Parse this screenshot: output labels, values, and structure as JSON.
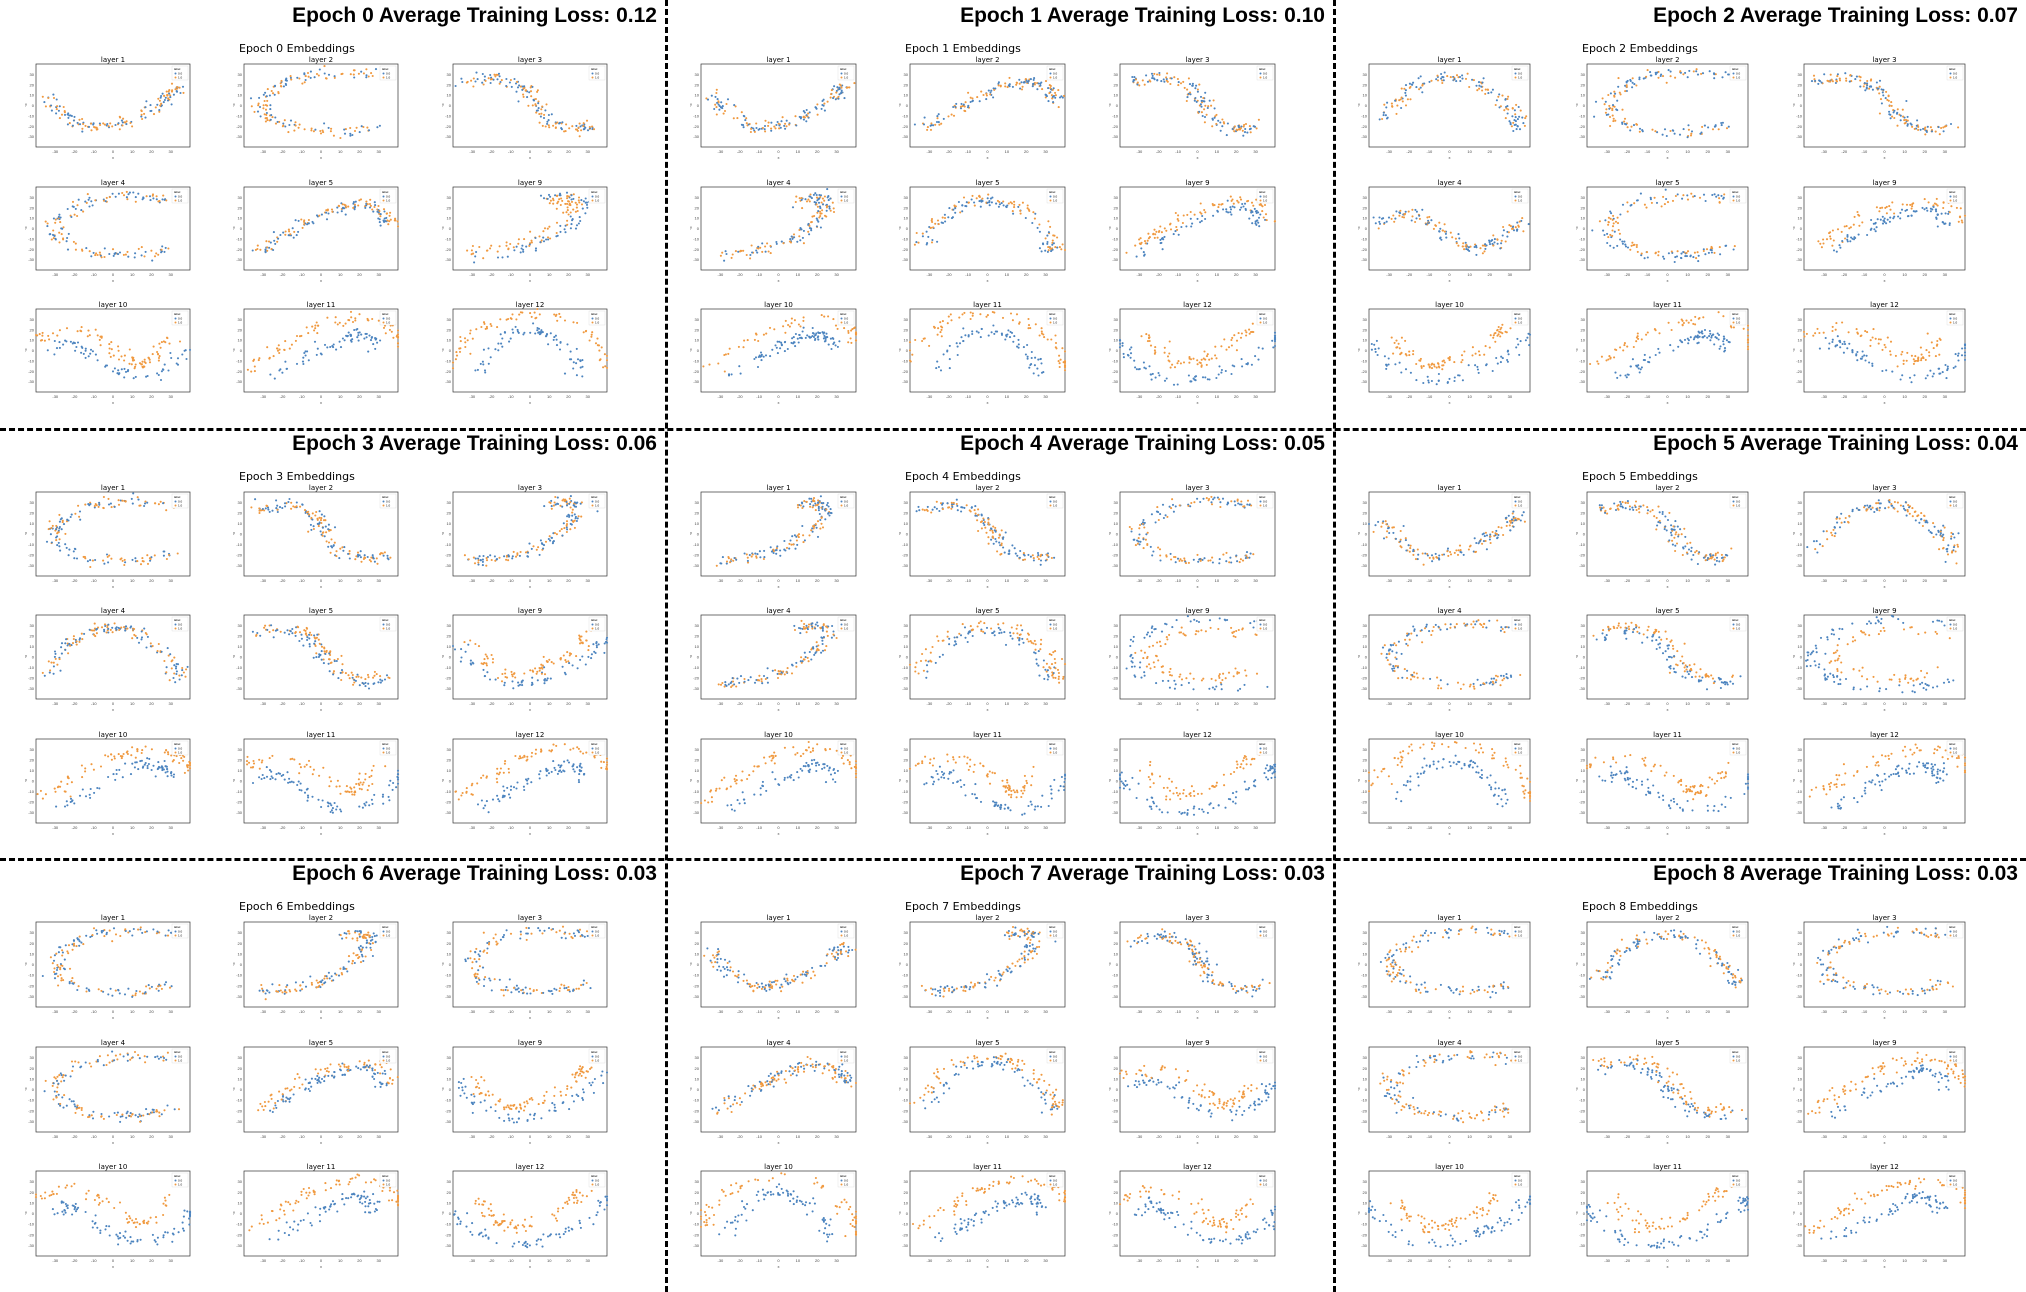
{
  "colors": {
    "class_0": "#4c84bf",
    "class_1": "#f0993f",
    "frame": "#333333",
    "divider": "#000000"
  },
  "legend": {
    "title": "label",
    "entries": [
      "0.0",
      "1.0"
    ]
  },
  "panels": [
    {
      "loss_title": "Epoch 0 Average Training Loss: 0.12",
      "embed_title": "Epoch 0 Embeddings"
    },
    {
      "loss_title": "Epoch 1 Average Training Loss: 0.10",
      "embed_title": "Epoch 1 Embeddings"
    },
    {
      "loss_title": "Epoch 2 Average Training Loss: 0.07",
      "embed_title": "Epoch 2 Embeddings"
    },
    {
      "loss_title": "Epoch 3 Average Training Loss: 0.06",
      "embed_title": "Epoch 3 Embeddings"
    },
    {
      "loss_title": "Epoch 4 Average Training Loss: 0.05",
      "embed_title": "Epoch 4 Embeddings"
    },
    {
      "loss_title": "Epoch 5 Average Training Loss: 0.04",
      "embed_title": "Epoch 5 Embeddings"
    },
    {
      "loss_title": "Epoch 6 Average Training Loss: 0.03",
      "embed_title": "Epoch 6 Embeddings"
    },
    {
      "loss_title": "Epoch 7 Average Training Loss: 0.03",
      "embed_title": "Epoch 7 Embeddings"
    },
    {
      "loss_title": "Epoch 8 Average Training Loss: 0.03",
      "embed_title": "Epoch 8 Embeddings"
    }
  ],
  "chart_data": {
    "type": "scatter",
    "description_of_series": "t-SNE embeddings per layer, colored by label",
    "series_names": [
      "0.0",
      "1.0"
    ],
    "layers": [
      "layer 1",
      "layer 2",
      "layer 3",
      "layer 4",
      "layer 5",
      "layer 9",
      "layer 10",
      "layer 11",
      "layer 12"
    ],
    "xlim": [
      -40,
      40
    ],
    "ylim": [
      -40,
      40
    ],
    "xticks": [
      -30,
      -20,
      -10,
      0,
      10,
      20,
      30
    ],
    "yticks": [
      -30,
      -20,
      -10,
      0,
      10,
      20,
      30
    ],
    "xlabel": "x",
    "ylabel": "y",
    "shapes": {
      "sweep_down": [
        [
          -34,
          12
        ],
        [
          -26,
          -8
        ],
        [
          -12,
          -22
        ],
        [
          4,
          -18
        ],
        [
          18,
          -6
        ],
        [
          30,
          10
        ],
        [
          34,
          18
        ]
      ],
      "sweep_up": [
        [
          -32,
          -22
        ],
        [
          -18,
          -6
        ],
        [
          -4,
          10
        ],
        [
          10,
          20
        ],
        [
          22,
          24
        ],
        [
          32,
          16
        ],
        [
          36,
          4
        ]
      ],
      "c_open_right": [
        [
          30,
          28
        ],
        [
          10,
          32
        ],
        [
          -14,
          26
        ],
        [
          -30,
          8
        ],
        [
          -28,
          -12
        ],
        [
          -10,
          -24
        ],
        [
          14,
          -26
        ],
        [
          30,
          -18
        ]
      ],
      "s_curve": [
        [
          -34,
          22
        ],
        [
          -18,
          28
        ],
        [
          -4,
          18
        ],
        [
          2,
          2
        ],
        [
          8,
          -14
        ],
        [
          20,
          -24
        ],
        [
          34,
          -20
        ]
      ],
      "hook": [
        [
          -30,
          -26
        ],
        [
          -12,
          -22
        ],
        [
          6,
          -12
        ],
        [
          18,
          4
        ],
        [
          26,
          22
        ],
        [
          20,
          32
        ],
        [
          10,
          26
        ]
      ],
      "arch": [
        [
          -34,
          -16
        ],
        [
          -24,
          10
        ],
        [
          -10,
          26
        ],
        [
          6,
          28
        ],
        [
          20,
          16
        ],
        [
          32,
          -6
        ],
        [
          34,
          -22
        ]
      ],
      "wave": [
        [
          -36,
          6
        ],
        [
          -22,
          16
        ],
        [
          -8,
          4
        ],
        [
          4,
          -14
        ],
        [
          16,
          -20
        ],
        [
          28,
          -8
        ],
        [
          36,
          10
        ]
      ]
    },
    "epochs": [
      {
        "epoch": 0,
        "subplots": [
          {
            "layer": "layer 1",
            "shape": "sweep_down",
            "split": 0.0
          },
          {
            "layer": "layer 2",
            "shape": "c_open_right",
            "split": 0.0
          },
          {
            "layer": "layer 3",
            "shape": "s_curve",
            "split": 0.0
          },
          {
            "layer": "layer 4",
            "shape": "c_open_right",
            "split": 0.0
          },
          {
            "layer": "layer 5",
            "shape": "sweep_up",
            "split": 0.1
          },
          {
            "layer": "layer 9",
            "shape": "hook",
            "split": 0.3
          },
          {
            "layer": "layer 10",
            "shape": "wave",
            "split": 0.7
          },
          {
            "layer": "layer 11",
            "shape": "sweep_up",
            "split": 0.9
          },
          {
            "layer": "layer 12",
            "shape": "arch",
            "split": 0.9
          }
        ]
      },
      {
        "epoch": 1,
        "subplots": [
          {
            "layer": "layer 1",
            "shape": "sweep_down",
            "split": 0.0
          },
          {
            "layer": "layer 2",
            "shape": "sweep_up",
            "split": 0.0
          },
          {
            "layer": "layer 3",
            "shape": "s_curve",
            "split": 0.0
          },
          {
            "layer": "layer 4",
            "shape": "hook",
            "split": 0.0
          },
          {
            "layer": "layer 5",
            "shape": "arch",
            "split": 0.2
          },
          {
            "layer": "layer 9",
            "shape": "sweep_up",
            "split": 0.4
          },
          {
            "layer": "layer 10",
            "shape": "sweep_up",
            "split": 0.8
          },
          {
            "layer": "layer 11",
            "shape": "arch",
            "split": 0.9
          },
          {
            "layer": "layer 12",
            "shape": "sweep_down",
            "split": 0.9
          }
        ]
      },
      {
        "epoch": 2,
        "subplots": [
          {
            "layer": "layer 1",
            "shape": "arch",
            "split": 0.0
          },
          {
            "layer": "layer 2",
            "shape": "c_open_right",
            "split": 0.0
          },
          {
            "layer": "layer 3",
            "shape": "s_curve",
            "split": 0.0
          },
          {
            "layer": "layer 4",
            "shape": "wave",
            "split": 0.0
          },
          {
            "layer": "layer 5",
            "shape": "c_open_right",
            "split": 0.2
          },
          {
            "layer": "layer 9",
            "shape": "sweep_up",
            "split": 0.5
          },
          {
            "layer": "layer 10",
            "shape": "sweep_down",
            "split": 0.8
          },
          {
            "layer": "layer 11",
            "shape": "sweep_up",
            "split": 0.9
          },
          {
            "layer": "layer 12",
            "shape": "wave",
            "split": 0.9
          }
        ]
      },
      {
        "epoch": 3,
        "subplots": [
          {
            "layer": "layer 1",
            "shape": "c_open_right",
            "split": 0.0
          },
          {
            "layer": "layer 2",
            "shape": "s_curve",
            "split": 0.0
          },
          {
            "layer": "layer 3",
            "shape": "hook",
            "split": 0.0
          },
          {
            "layer": "layer 4",
            "shape": "arch",
            "split": 0.0
          },
          {
            "layer": "layer 5",
            "shape": "s_curve",
            "split": 0.2
          },
          {
            "layer": "layer 9",
            "shape": "sweep_down",
            "split": 0.5
          },
          {
            "layer": "layer 10",
            "shape": "sweep_up",
            "split": 0.8
          },
          {
            "layer": "layer 11",
            "shape": "wave",
            "split": 0.9
          },
          {
            "layer": "layer 12",
            "shape": "sweep_up",
            "split": 0.9
          }
        ]
      },
      {
        "epoch": 4,
        "subplots": [
          {
            "layer": "layer 1",
            "shape": "hook",
            "split": 0.0
          },
          {
            "layer": "layer 2",
            "shape": "s_curve",
            "split": 0.0
          },
          {
            "layer": "layer 3",
            "shape": "c_open_right",
            "split": 0.0
          },
          {
            "layer": "layer 4",
            "shape": "hook",
            "split": 0.0
          },
          {
            "layer": "layer 5",
            "shape": "arch",
            "split": 0.3
          },
          {
            "layer": "layer 9",
            "shape": "c_open_right",
            "split": 0.6
          },
          {
            "layer": "layer 10",
            "shape": "sweep_up",
            "split": 0.9
          },
          {
            "layer": "layer 11",
            "shape": "wave",
            "split": 0.9
          },
          {
            "layer": "layer 12",
            "shape": "sweep_down",
            "split": 0.9
          }
        ]
      },
      {
        "epoch": 5,
        "subplots": [
          {
            "layer": "layer 1",
            "shape": "sweep_down",
            "split": 0.0
          },
          {
            "layer": "layer 2",
            "shape": "s_curve",
            "split": 0.0
          },
          {
            "layer": "layer 3",
            "shape": "arch",
            "split": 0.0
          },
          {
            "layer": "layer 4",
            "shape": "c_open_right",
            "split": 0.0
          },
          {
            "layer": "layer 5",
            "shape": "s_curve",
            "split": 0.3
          },
          {
            "layer": "layer 9",
            "shape": "c_open_right",
            "split": 0.6
          },
          {
            "layer": "layer 10",
            "shape": "arch",
            "split": 0.9
          },
          {
            "layer": "layer 11",
            "shape": "wave",
            "split": 0.9
          },
          {
            "layer": "layer 12",
            "shape": "sweep_up",
            "split": 0.9
          }
        ]
      },
      {
        "epoch": 6,
        "subplots": [
          {
            "layer": "layer 1",
            "shape": "c_open_right",
            "split": 0.0
          },
          {
            "layer": "layer 2",
            "shape": "hook",
            "split": 0.0
          },
          {
            "layer": "layer 3",
            "shape": "c_open_right",
            "split": 0.0
          },
          {
            "layer": "layer 4",
            "shape": "c_open_right",
            "split": 0.0
          },
          {
            "layer": "layer 5",
            "shape": "sweep_up",
            "split": 0.3
          },
          {
            "layer": "layer 9",
            "shape": "sweep_down",
            "split": 0.6
          },
          {
            "layer": "layer 10",
            "shape": "wave",
            "split": 0.9
          },
          {
            "layer": "layer 11",
            "shape": "sweep_up",
            "split": 0.9
          },
          {
            "layer": "layer 12",
            "shape": "sweep_down",
            "split": 0.9
          }
        ]
      },
      {
        "epoch": 7,
        "subplots": [
          {
            "layer": "layer 1",
            "shape": "sweep_down",
            "split": 0.0
          },
          {
            "layer": "layer 2",
            "shape": "hook",
            "split": 0.0
          },
          {
            "layer": "layer 3",
            "shape": "s_curve",
            "split": 0.0
          },
          {
            "layer": "layer 4",
            "shape": "sweep_up",
            "split": 0.0
          },
          {
            "layer": "layer 5",
            "shape": "arch",
            "split": 0.3
          },
          {
            "layer": "layer 9",
            "shape": "wave",
            "split": 0.6
          },
          {
            "layer": "layer 10",
            "shape": "arch",
            "split": 0.9
          },
          {
            "layer": "layer 11",
            "shape": "sweep_up",
            "split": 0.9
          },
          {
            "layer": "layer 12",
            "shape": "wave",
            "split": 0.9
          }
        ]
      },
      {
        "epoch": 8,
        "subplots": [
          {
            "layer": "layer 1",
            "shape": "c_open_right",
            "split": 0.0
          },
          {
            "layer": "layer 2",
            "shape": "arch",
            "split": 0.0
          },
          {
            "layer": "layer 3",
            "shape": "c_open_right",
            "split": 0.0
          },
          {
            "layer": "layer 4",
            "shape": "c_open_right",
            "split": 0.0
          },
          {
            "layer": "layer 5",
            "shape": "s_curve",
            "split": 0.3
          },
          {
            "layer": "layer 9",
            "shape": "sweep_up",
            "split": 0.6
          },
          {
            "layer": "layer 10",
            "shape": "sweep_down",
            "split": 0.9
          },
          {
            "layer": "layer 11",
            "shape": "sweep_down",
            "split": 0.9
          },
          {
            "layer": "layer 12",
            "shape": "sweep_up",
            "split": 0.9
          }
        ]
      }
    ]
  }
}
